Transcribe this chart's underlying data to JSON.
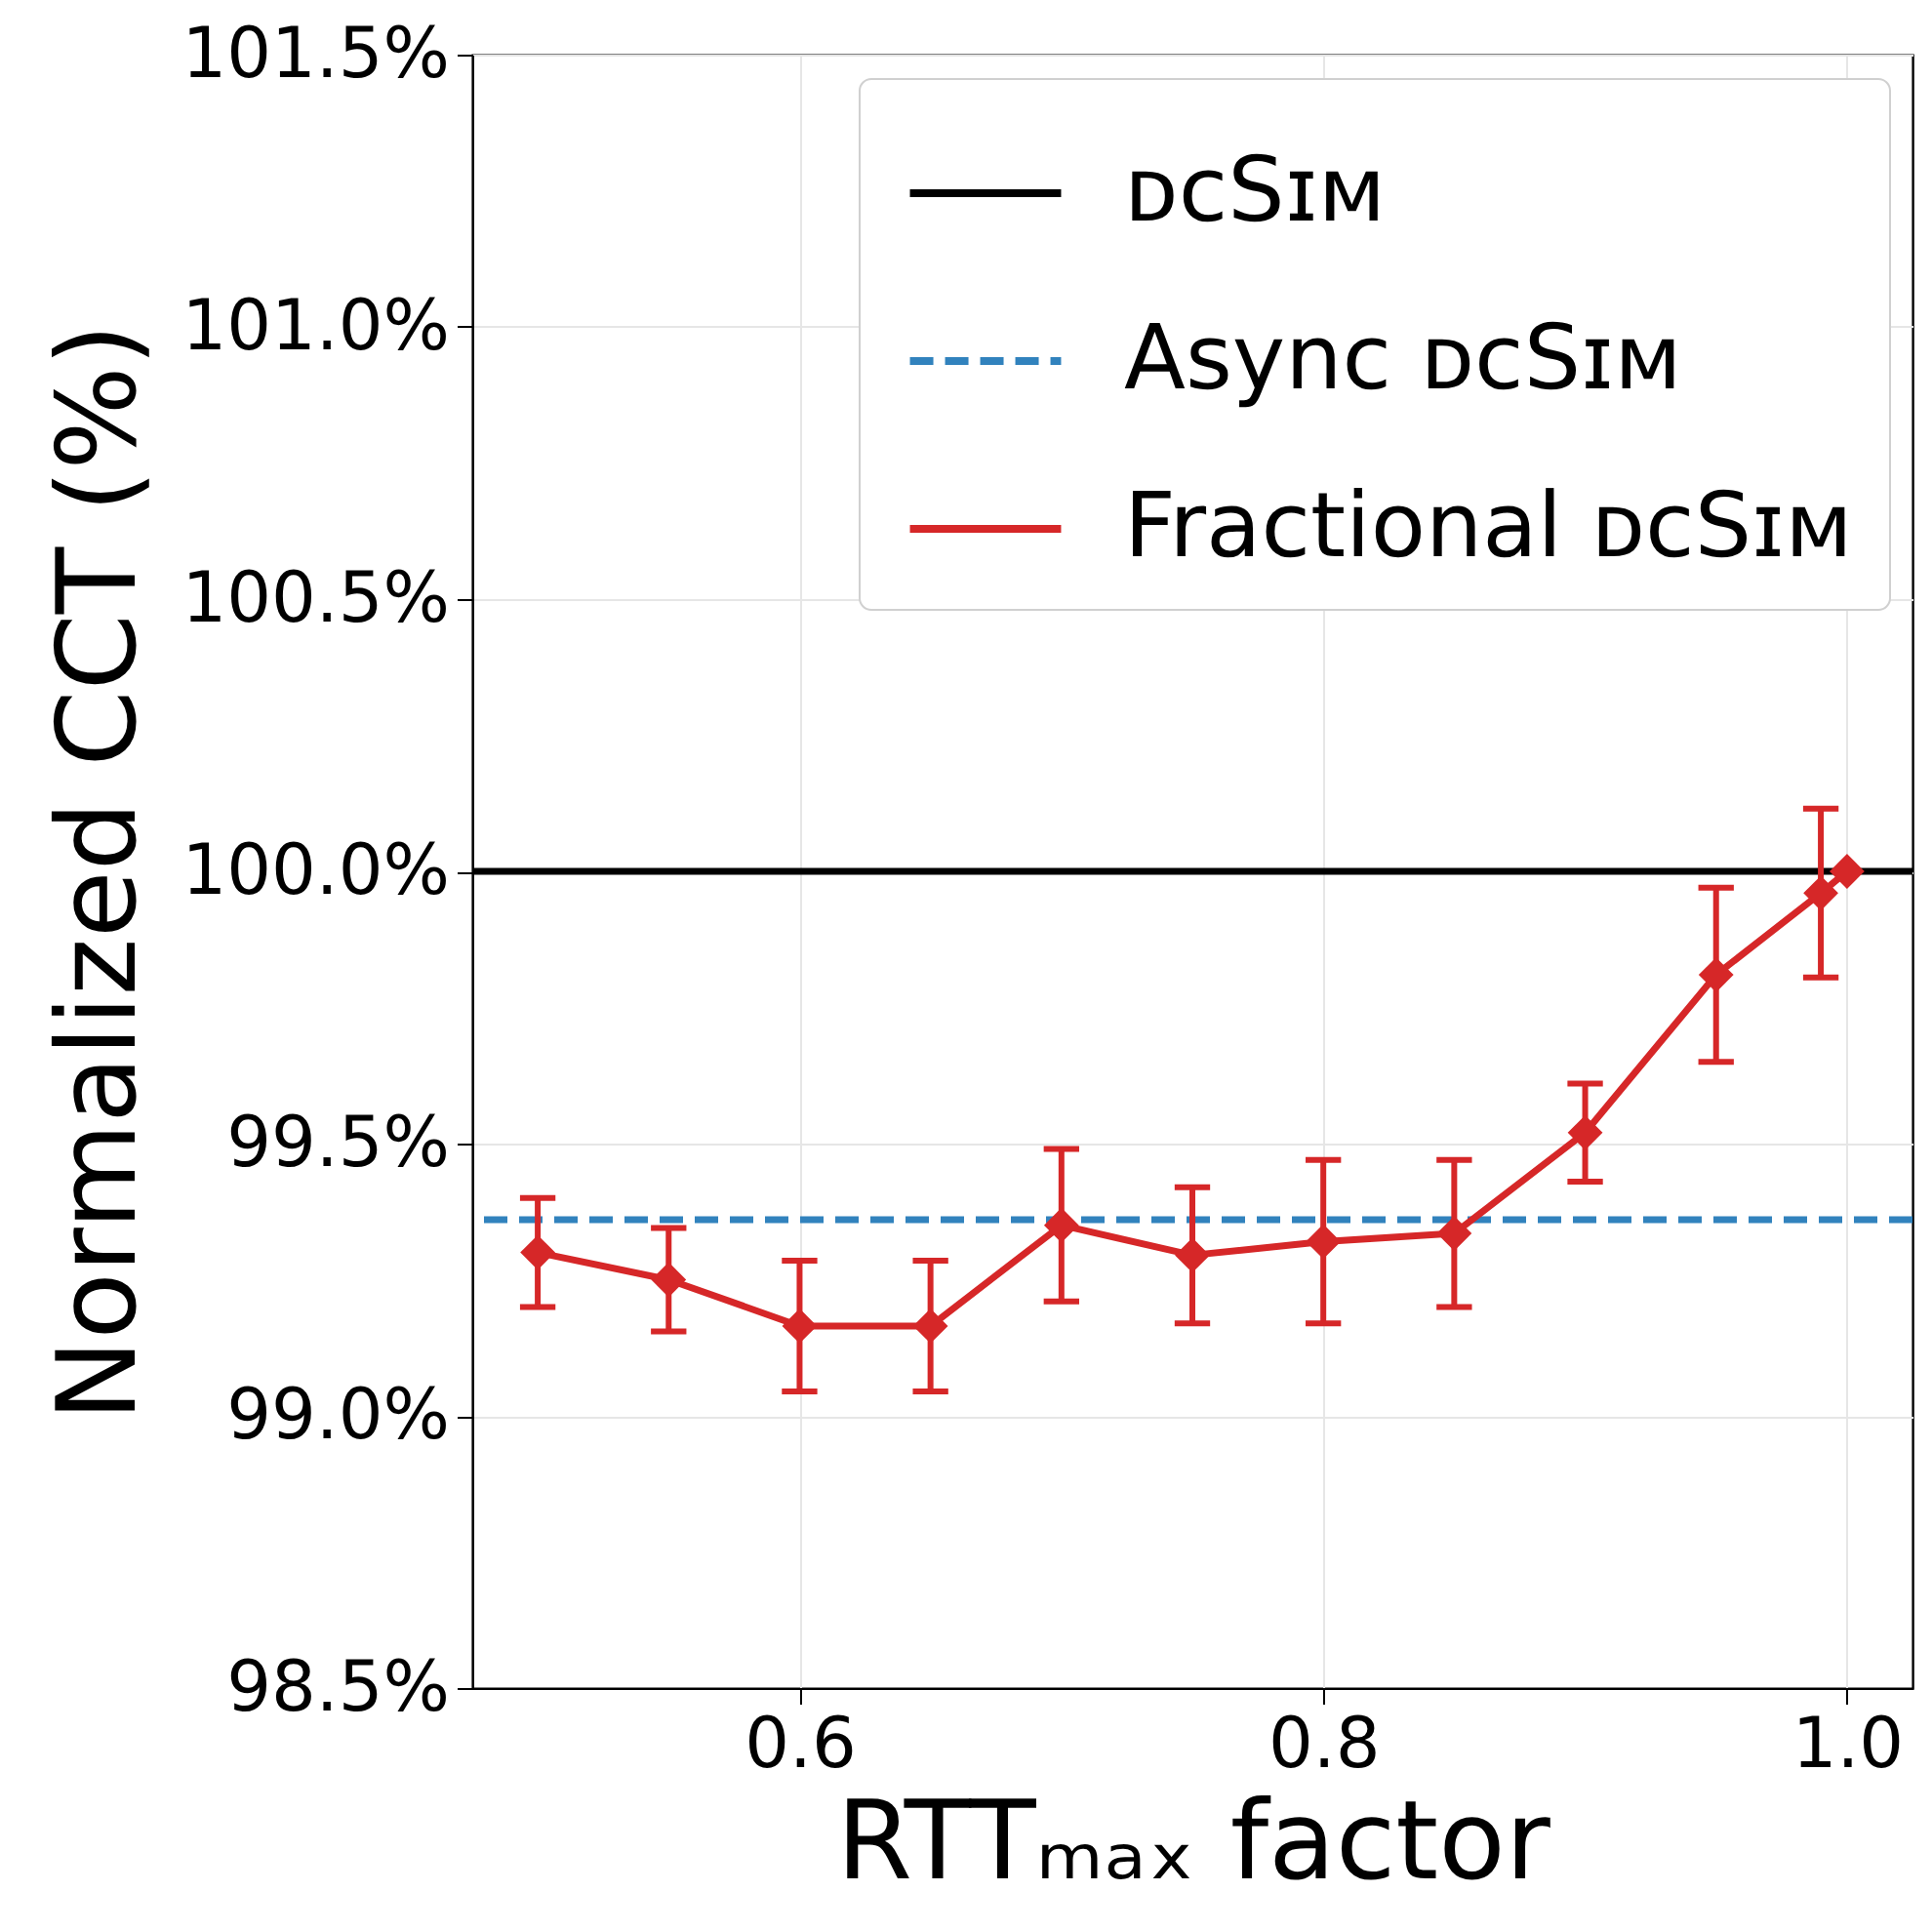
{
  "chart_data": {
    "type": "line",
    "xlabel": "RTTₘₐₓ factor",
    "ylabel": "Normalized CCT (%)",
    "x": [
      0.5,
      0.55,
      0.6,
      0.65,
      0.7,
      0.75,
      0.8,
      0.85,
      0.9,
      0.95,
      0.99,
      1.0
    ],
    "series": [
      {
        "name": "Fractional ᴅᴄSɪᴍ",
        "color": "#d62728",
        "values": [
          99.3,
          99.25,
          99.165,
          99.165,
          99.35,
          99.295,
          99.32,
          99.335,
          99.52,
          99.81,
          99.96,
          100.0
        ],
        "errors": [
          0.1,
          0.095,
          0.12,
          0.12,
          0.14,
          0.125,
          0.15,
          0.135,
          0.09,
          0.16,
          0.155,
          null
        ],
        "line_style": "solid",
        "marker": "diamond"
      }
    ],
    "ref_lines": [
      {
        "axis": "y",
        "value": 100,
        "label": "ᴅᴄSɪᴍ",
        "color": "#000000",
        "line_style": "solid"
      },
      {
        "axis": "y",
        "value": 99.36,
        "label": "Async ᴅᴄSɪᴍ",
        "color": "#3182bd",
        "line_style": "dashed"
      }
    ],
    "xlim": [
      0.475,
      1.025
    ],
    "xticks": [
      0.6,
      0.8,
      {
        "value": 1.0,
        "label": "1.0"
      }
    ],
    "ylim": [
      98.5,
      101.5
    ],
    "yticks": [
      {
        "value": 98.5,
        "label": "98.5%"
      },
      {
        "value": 99,
        "label": "99.0%"
      },
      {
        "value": 99.5,
        "label": "99.5%"
      },
      {
        "value": 100,
        "label": "100.0%"
      },
      {
        "value": 100.5,
        "label": "100.5%"
      },
      {
        "value": 101,
        "label": "101.0%"
      },
      {
        "value": 101.5,
        "label": "101.5%"
      }
    ],
    "grid": true,
    "legend": "top right"
  }
}
